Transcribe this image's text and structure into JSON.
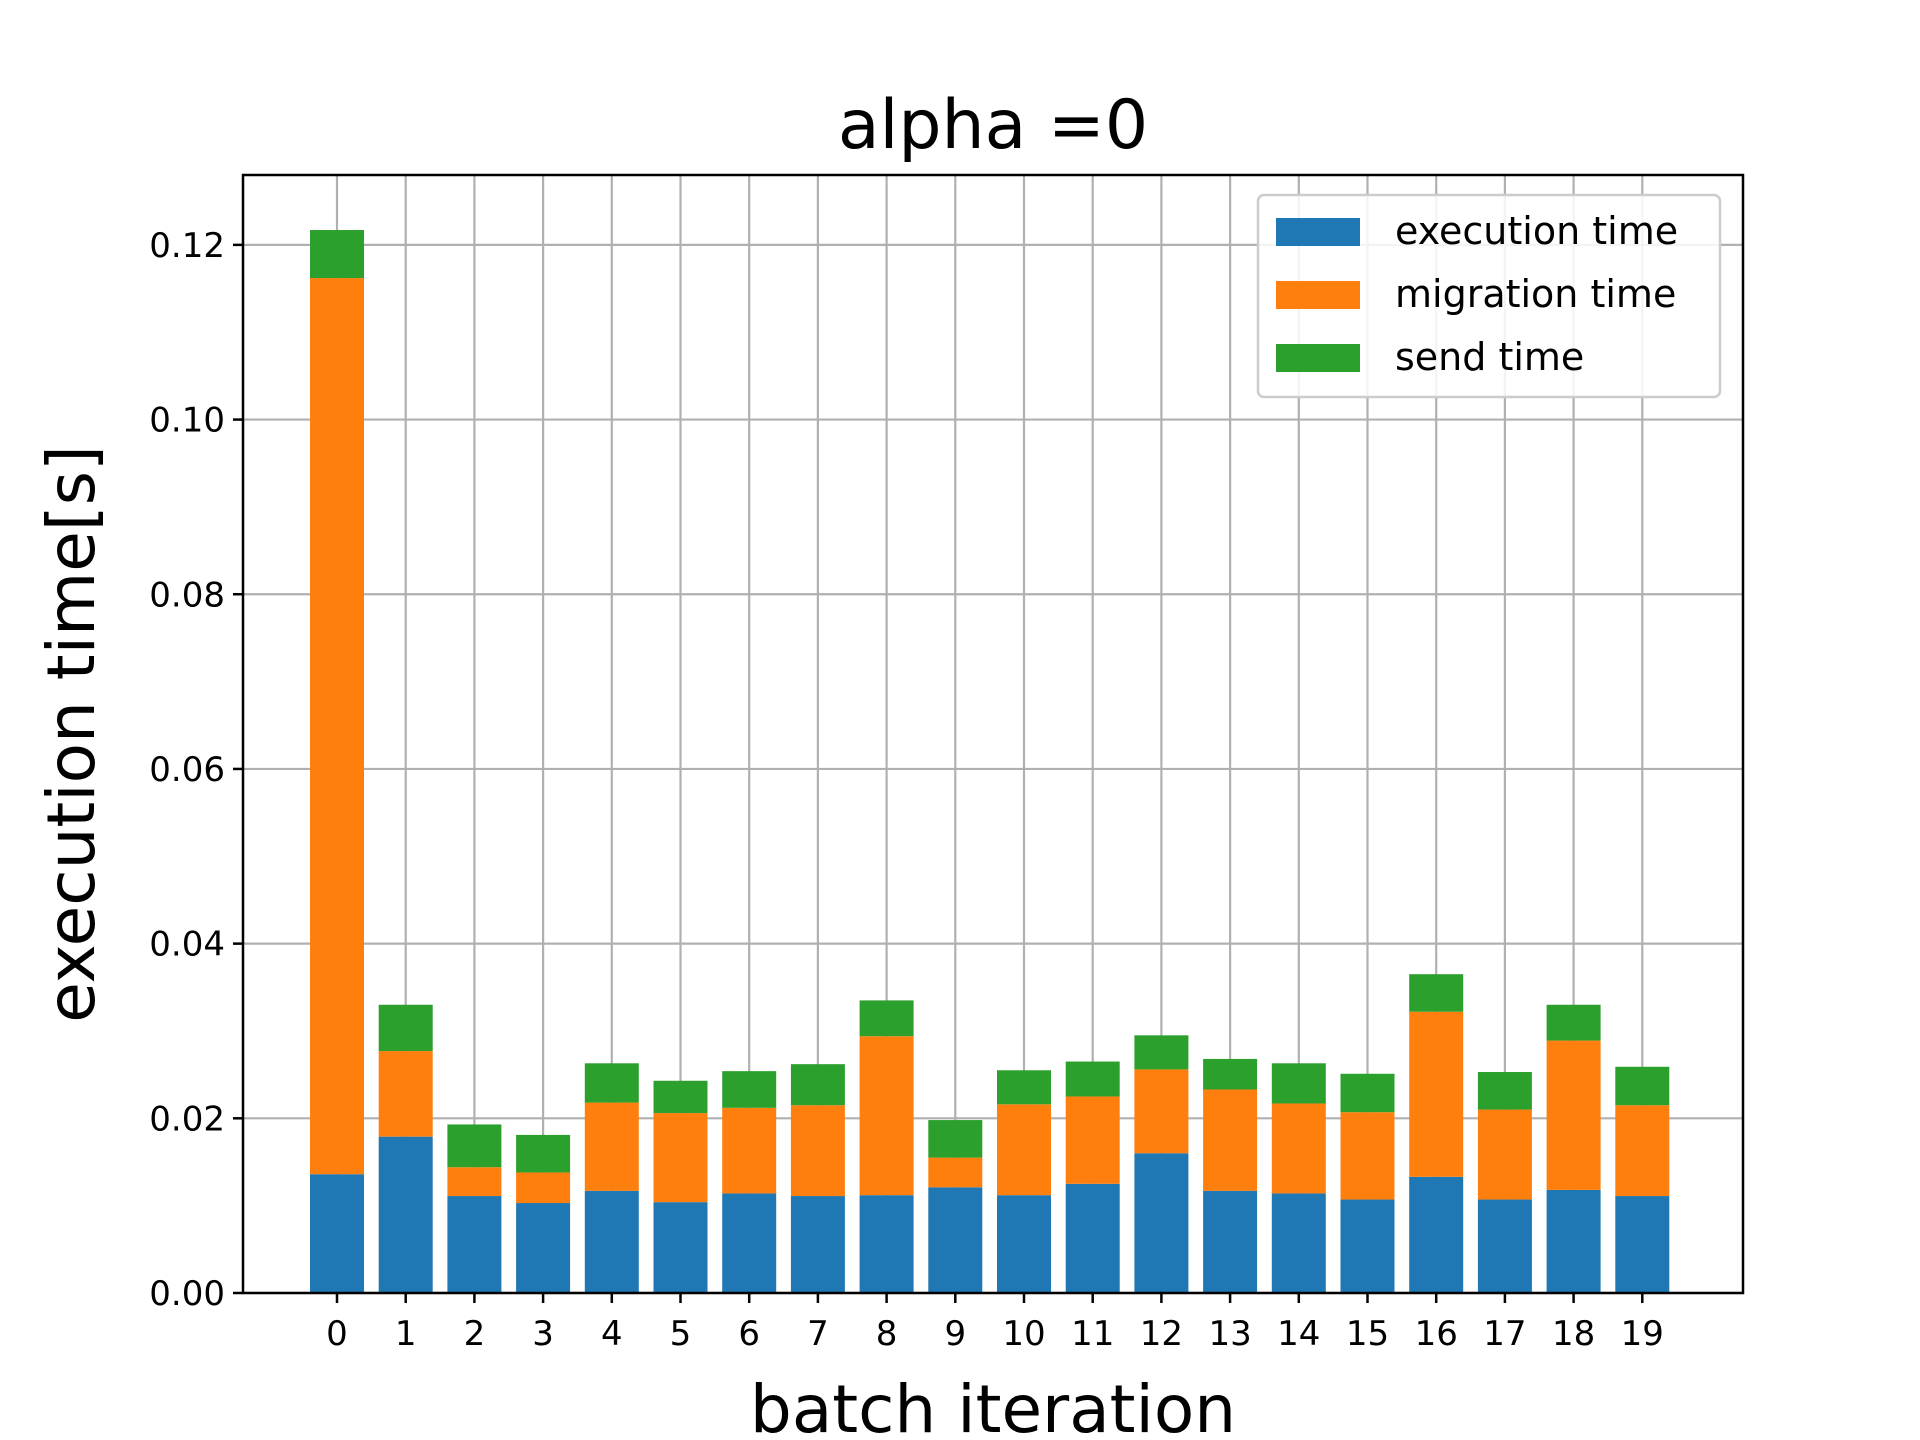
{
  "chart_data": {
    "type": "bar",
    "stacked": true,
    "title": "alpha =0",
    "xlabel": "batch iteration",
    "ylabel": "execution time[s]",
    "categories": [
      "0",
      "1",
      "2",
      "3",
      "4",
      "5",
      "6",
      "7",
      "8",
      "9",
      "10",
      "11",
      "12",
      "13",
      "14",
      "15",
      "16",
      "17",
      "18",
      "19"
    ],
    "ylim": [
      0,
      0.128
    ],
    "yticks": [
      "0.00",
      "0.02",
      "0.04",
      "0.06",
      "0.08",
      "0.10",
      "0.12"
    ],
    "grid": true,
    "legend_position": "top-right",
    "series": [
      {
        "name": "execution time",
        "color": "#1f77b4",
        "values": [
          0.0136,
          0.0179,
          0.0111,
          0.0103,
          0.0117,
          0.0104,
          0.0114,
          0.0111,
          0.0112,
          0.0121,
          0.0112,
          0.0125,
          0.016,
          0.0117,
          0.0114,
          0.0107,
          0.0133,
          0.0107,
          0.0118,
          0.0111
        ]
      },
      {
        "name": "migration time",
        "color": "#ff7f0e",
        "values": [
          0.1026,
          0.0098,
          0.0033,
          0.0035,
          0.0101,
          0.0102,
          0.0098,
          0.0104,
          0.0182,
          0.0034,
          0.0104,
          0.01,
          0.0096,
          0.0116,
          0.0103,
          0.01,
          0.0189,
          0.0103,
          0.0171,
          0.0104
        ]
      },
      {
        "name": "send time",
        "color": "#2ca02c",
        "values": [
          0.0055,
          0.0053,
          0.0049,
          0.0043,
          0.0045,
          0.0037,
          0.0042,
          0.0047,
          0.0041,
          0.0043,
          0.0039,
          0.004,
          0.0039,
          0.0035,
          0.0046,
          0.0044,
          0.0043,
          0.0043,
          0.0041,
          0.0044
        ]
      }
    ]
  }
}
